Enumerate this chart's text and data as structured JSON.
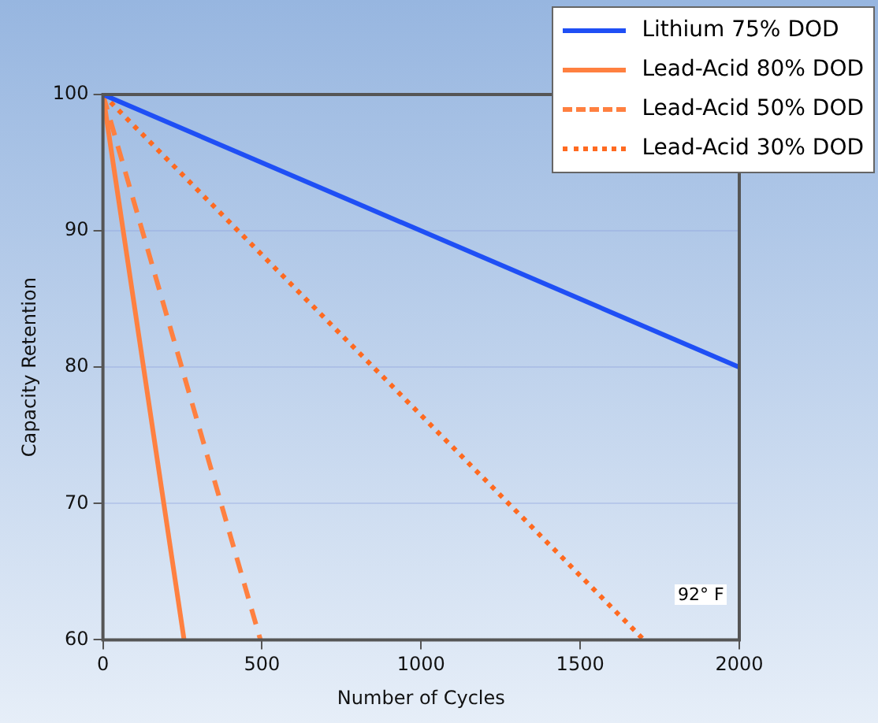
{
  "chart_data": {
    "type": "line",
    "xlabel": "Number of Cycles",
    "ylabel": "Capacity Retention",
    "xlim": [
      0,
      2000
    ],
    "xticks": [
      0,
      500,
      1000,
      1500,
      2000
    ],
    "ylim": [
      60,
      100
    ],
    "yticks": [
      60,
      70,
      80,
      90,
      100
    ],
    "grid": "y",
    "legend": "top right",
    "marker": "none",
    "series": [
      {
        "name": "Lithium 75% DOD",
        "color": "#1f4ff5",
        "x": [
          0,
          2000
        ],
        "values": [
          100,
          80
        ],
        "line_style": "solid"
      },
      {
        "name": "Lead-Acid 80% DOD",
        "color": "#ff8040",
        "x": [
          0,
          255
        ],
        "values": [
          100,
          60
        ],
        "line_style": "solid"
      },
      {
        "name": "Lead-Acid 50% DOD",
        "color": "#ff8040",
        "x": [
          0,
          495
        ],
        "values": [
          100,
          60
        ],
        "line_style": "dashed"
      },
      {
        "name": "Lead-Acid 30% DOD",
        "color": "#ff6a20",
        "x": [
          0,
          1700
        ],
        "values": [
          100,
          60
        ],
        "line_style": "dotted"
      }
    ],
    "annotations": [
      "92° F"
    ]
  }
}
